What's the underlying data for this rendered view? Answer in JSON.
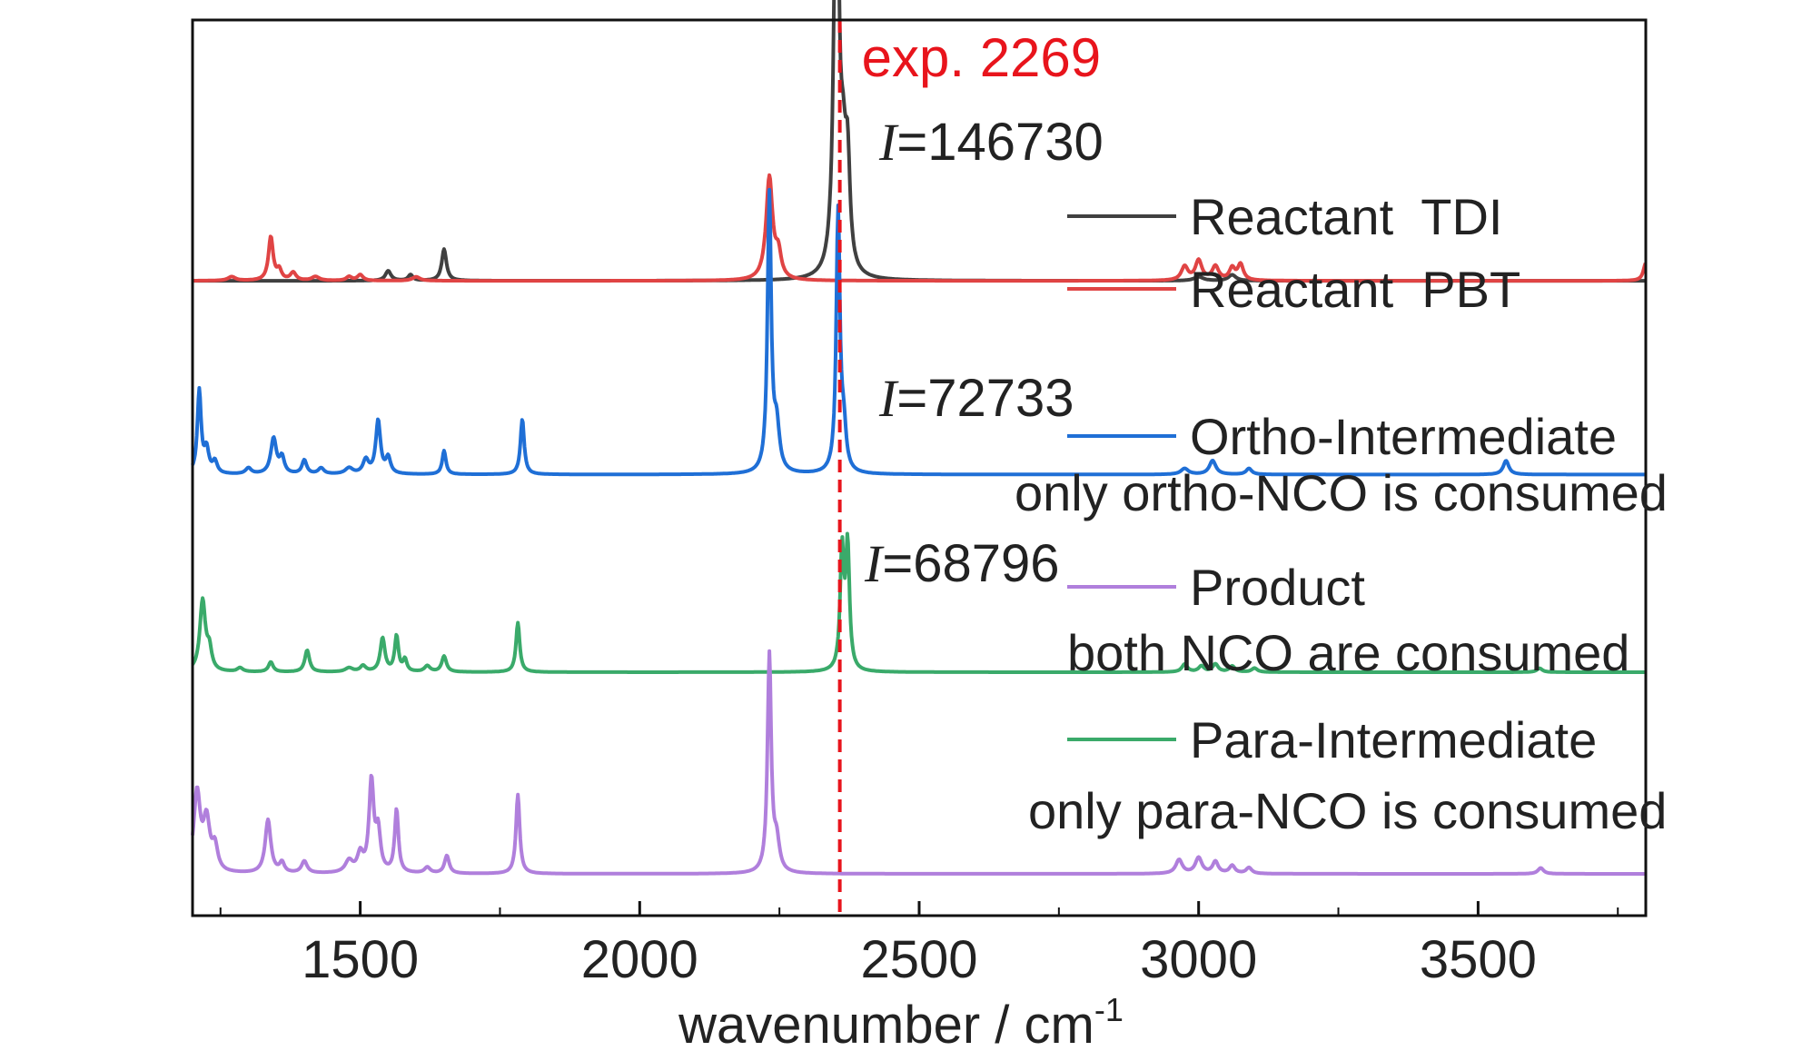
{
  "chart_data": {
    "type": "line",
    "xlabel": "wavenumber / cm",
    "xlabel_superscript": "-1",
    "xlim": [
      1200,
      3800
    ],
    "ylim": [
      0,
      4.2
    ],
    "grid": false,
    "x_ticks": [
      1500,
      2000,
      2500,
      3000,
      3500
    ],
    "x_tick_labels": [
      "1500",
      "2000",
      "2500",
      "3000",
      "3500"
    ],
    "reference_line": {
      "x": 2358,
      "label": "exp. 2269",
      "color": "#e8141c",
      "style": "dashed"
    },
    "annotations": [
      {
        "italic": "I",
        "text": "=146730",
        "near_series": "Reactant  TDI"
      },
      {
        "italic": "I",
        "text": "=72733",
        "near_series": "Ortho-Intermediate"
      },
      {
        "italic": "I",
        "text": "=68796",
        "near_series": "Para-Intermediate"
      }
    ],
    "legend": [
      {
        "label": "Reactant  TDI",
        "sublabel": "",
        "color": "#404040"
      },
      {
        "label": "Reactant  PBT",
        "sublabel": "",
        "color": "#e04444"
      },
      {
        "label": "Ortho-Intermediate",
        "sublabel": "only ortho-NCO is consumed",
        "color": "#1f6fd6"
      },
      {
        "label": "Product",
        "sublabel": "both NCO are consumed",
        "color": "#b07fdc"
      },
      {
        "label": "Para-Intermediate",
        "sublabel": "only para-NCO is consumed",
        "color": "#3aaa6a"
      }
    ],
    "series": [
      {
        "name": "Reactant  TDI",
        "color": "#404040",
        "baseline": 3.0,
        "peaks": [
          [
            1550,
            0.05,
            6
          ],
          [
            1590,
            0.03,
            5
          ],
          [
            1650,
            0.16,
            5
          ],
          [
            2352,
            2.45,
            5
          ],
          [
            2364,
            0.45,
            6
          ],
          [
            2372,
            0.5,
            5
          ],
          [
            3000,
            0.02,
            10
          ],
          [
            3060,
            0.03,
            8
          ]
        ]
      },
      {
        "name": "Reactant  PBT",
        "color": "#e04444",
        "baseline": 3.0,
        "peaks": [
          [
            1270,
            0.02,
            8
          ],
          [
            1340,
            0.22,
            5
          ],
          [
            1355,
            0.05,
            5
          ],
          [
            1380,
            0.04,
            6
          ],
          [
            1420,
            0.02,
            8
          ],
          [
            1480,
            0.02,
            6
          ],
          [
            1500,
            0.03,
            6
          ],
          [
            1600,
            0.02,
            8
          ],
          [
            2232,
            0.52,
            7
          ],
          [
            2248,
            0.12,
            6
          ],
          [
            2975,
            0.07,
            7
          ],
          [
            3000,
            0.1,
            7
          ],
          [
            3030,
            0.07,
            7
          ],
          [
            3060,
            0.06,
            6
          ],
          [
            3075,
            0.08,
            6
          ],
          [
            3800,
            0.09,
            5
          ]
        ]
      },
      {
        "name": "Ortho-Intermediate",
        "color": "#1f6fd6",
        "baseline": 2.02,
        "peaks": [
          [
            1212,
            0.42,
            4
          ],
          [
            1225,
            0.12,
            5
          ],
          [
            1240,
            0.06,
            5
          ],
          [
            1300,
            0.03,
            6
          ],
          [
            1345,
            0.18,
            6
          ],
          [
            1360,
            0.08,
            5
          ],
          [
            1400,
            0.07,
            5
          ],
          [
            1430,
            0.03,
            6
          ],
          [
            1480,
            0.03,
            8
          ],
          [
            1510,
            0.07,
            6
          ],
          [
            1532,
            0.27,
            5
          ],
          [
            1550,
            0.08,
            5
          ],
          [
            1650,
            0.12,
            4
          ],
          [
            1790,
            0.28,
            4
          ],
          [
            2232,
            1.4,
            4
          ],
          [
            2245,
            0.22,
            6
          ],
          [
            2355,
            1.32,
            4
          ],
          [
            2365,
            0.2,
            5
          ],
          [
            2975,
            0.03,
            8
          ],
          [
            3025,
            0.07,
            7
          ],
          [
            3090,
            0.03,
            6
          ],
          [
            3550,
            0.07,
            6
          ]
        ]
      },
      {
        "name": "Para-Intermediate",
        "color": "#3aaa6a",
        "baseline": 1.02,
        "peaks": [
          [
            1218,
            0.36,
            6
          ],
          [
            1230,
            0.1,
            5
          ],
          [
            1285,
            0.02,
            6
          ],
          [
            1340,
            0.05,
            5
          ],
          [
            1405,
            0.11,
            5
          ],
          [
            1480,
            0.02,
            8
          ],
          [
            1505,
            0.03,
            6
          ],
          [
            1540,
            0.17,
            5
          ],
          [
            1565,
            0.18,
            4
          ],
          [
            1580,
            0.06,
            4
          ],
          [
            1620,
            0.03,
            6
          ],
          [
            1650,
            0.08,
            5
          ],
          [
            1782,
            0.25,
            4
          ],
          [
            2362,
            0.6,
            4
          ],
          [
            2372,
            0.62,
            4
          ],
          [
            2975,
            0.04,
            6
          ],
          [
            3005,
            0.03,
            6
          ],
          [
            3030,
            0.04,
            6
          ],
          [
            3060,
            0.03,
            6
          ],
          [
            3100,
            0.02,
            6
          ],
          [
            3610,
            0.02,
            6
          ]
        ]
      },
      {
        "name": "Product",
        "color": "#b07fdc",
        "baseline": 0.0,
        "peaks": [
          [
            1208,
            0.4,
            7
          ],
          [
            1225,
            0.25,
            7
          ],
          [
            1240,
            0.12,
            6
          ],
          [
            1335,
            0.27,
            6
          ],
          [
            1360,
            0.05,
            5
          ],
          [
            1400,
            0.06,
            6
          ],
          [
            1480,
            0.06,
            8
          ],
          [
            1500,
            0.09,
            6
          ],
          [
            1520,
            0.46,
            5
          ],
          [
            1532,
            0.2,
            5
          ],
          [
            1565,
            0.32,
            4
          ],
          [
            1620,
            0.03,
            6
          ],
          [
            1655,
            0.09,
            5
          ],
          [
            1782,
            0.4,
            4
          ],
          [
            2232,
            1.1,
            4
          ],
          [
            2245,
            0.15,
            6
          ],
          [
            2965,
            0.07,
            7
          ],
          [
            3000,
            0.08,
            7
          ],
          [
            3030,
            0.06,
            6
          ],
          [
            3060,
            0.04,
            6
          ],
          [
            3090,
            0.03,
            6
          ],
          [
            3612,
            0.03,
            6
          ]
        ]
      }
    ]
  }
}
